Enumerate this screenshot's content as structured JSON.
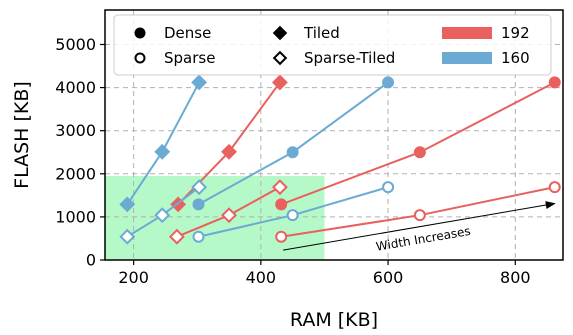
{
  "chart_data": {
    "type": "line",
    "xlabel": "RAM [KB]",
    "ylabel": "FLASH [KB]",
    "xlim": [
      155,
      875
    ],
    "ylim": [
      0,
      5800
    ],
    "xticks": [
      200,
      400,
      600,
      800
    ],
    "yticks": [
      0,
      1000,
      2000,
      3000,
      4000,
      5000
    ],
    "grid": true,
    "legend": {
      "placement": "top",
      "columns": 3
    },
    "markers": [
      {
        "name": "Dense",
        "marker": "circle",
        "filled": true
      },
      {
        "name": "Sparse",
        "marker": "circle",
        "filled": false
      },
      {
        "name": "Tiled",
        "marker": "diamond",
        "filled": true
      },
      {
        "name": "Sparse-Tiled",
        "marker": "diamond",
        "filled": false
      }
    ],
    "colors": [
      {
        "name": "192",
        "color": "#e8615f"
      },
      {
        "name": "160",
        "color": "#6aaad3"
      }
    ],
    "highlight_region": {
      "x": [
        155,
        500
      ],
      "y": [
        0,
        1950
      ],
      "color": "#b6f9c9"
    },
    "series": [
      {
        "group": "192",
        "style": "Dense",
        "color": "#e8615f",
        "points": [
          [
            432,
            1290
          ],
          [
            650,
            2500
          ],
          [
            862,
            4120
          ]
        ]
      },
      {
        "group": "192",
        "style": "Sparse",
        "color": "#e8615f",
        "points": [
          [
            432,
            540
          ],
          [
            650,
            1040
          ],
          [
            862,
            1690
          ]
        ]
      },
      {
        "group": "192",
        "style": "Tiled",
        "color": "#e8615f",
        "points": [
          [
            270,
            1290
          ],
          [
            350,
            2510
          ],
          [
            430,
            4120
          ]
        ]
      },
      {
        "group": "192",
        "style": "Sparse-Tiled",
        "color": "#e8615f",
        "points": [
          [
            268,
            540
          ],
          [
            350,
            1040
          ],
          [
            430,
            1690
          ]
        ]
      },
      {
        "group": "160",
        "style": "Dense",
        "color": "#6aaad3",
        "points": [
          [
            302,
            1290
          ],
          [
            450,
            2500
          ],
          [
            600,
            4120
          ]
        ]
      },
      {
        "group": "160",
        "style": "Sparse",
        "color": "#6aaad3",
        "points": [
          [
            302,
            540
          ],
          [
            450,
            1040
          ],
          [
            600,
            1690
          ]
        ]
      },
      {
        "group": "160",
        "style": "Tiled",
        "color": "#6aaad3",
        "points": [
          [
            190,
            1290
          ],
          [
            245,
            2510
          ],
          [
            303,
            4120
          ]
        ]
      },
      {
        "group": "160",
        "style": "Sparse-Tiled",
        "color": "#6aaad3",
        "points": [
          [
            190,
            540
          ],
          [
            245,
            1040
          ],
          [
            303,
            1690
          ]
        ]
      }
    ],
    "annotation": {
      "text": "Width Increases",
      "arrow_from": [
        435,
        230
      ],
      "arrow_to": [
        862,
        1310
      ]
    }
  }
}
